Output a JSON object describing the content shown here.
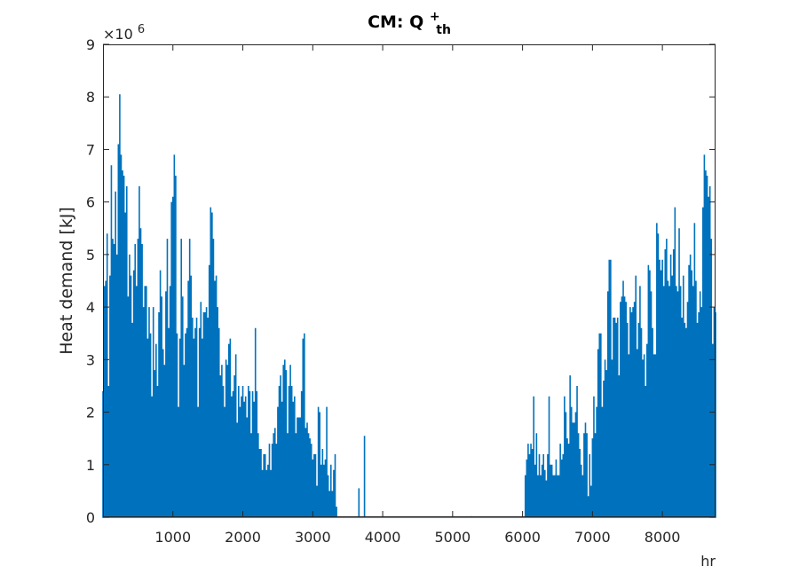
{
  "chart_data": {
    "type": "line",
    "title": {
      "main": "CM: Q",
      "sup": "+",
      "sub": "th"
    },
    "xlabel": "hr",
    "ylabel": "Heat demand [kJ]",
    "y_exponent_label": {
      "base": "×10",
      "exp": "6"
    },
    "xlim": [
      0,
      8760
    ],
    "ylim": [
      0,
      9
    ],
    "y_scale_factor": 1000000,
    "xticks": [
      1000,
      2000,
      3000,
      4000,
      5000,
      6000,
      7000,
      8000
    ],
    "xtick_labels": [
      "1000",
      "2000",
      "3000",
      "4000",
      "5000",
      "6000",
      "7000",
      "8000"
    ],
    "yticks": [
      0,
      1,
      2,
      3,
      4,
      5,
      6,
      7,
      8,
      9
    ],
    "ytick_labels": [
      "0",
      "1",
      "2",
      "3",
      "4",
      "5",
      "6",
      "7",
      "8",
      "9"
    ],
    "grid": false,
    "series": [
      {
        "color": "#0072BD",
        "x": [
          0,
          20,
          40,
          60,
          80,
          100,
          120,
          140,
          160,
          180,
          200,
          220,
          240,
          260,
          280,
          300,
          320,
          340,
          360,
          380,
          400,
          420,
          440,
          460,
          480,
          500,
          520,
          540,
          560,
          580,
          600,
          620,
          640,
          660,
          680,
          700,
          720,
          740,
          760,
          780,
          800,
          820,
          840,
          860,
          880,
          900,
          920,
          940,
          960,
          980,
          1000,
          1020,
          1040,
          1060,
          1080,
          1100,
          1120,
          1140,
          1160,
          1180,
          1200,
          1220,
          1240,
          1260,
          1280,
          1300,
          1320,
          1340,
          1360,
          1380,
          1400,
          1420,
          1440,
          1460,
          1480,
          1500,
          1520,
          1540,
          1560,
          1580,
          1600,
          1620,
          1640,
          1660,
          1680,
          1700,
          1720,
          1740,
          1760,
          1780,
          1800,
          1820,
          1840,
          1860,
          1880,
          1900,
          1920,
          1940,
          1960,
          1980,
          2000,
          2020,
          2040,
          2060,
          2080,
          2100,
          2120,
          2140,
          2160,
          2180,
          2200,
          2220,
          2240,
          2260,
          2280,
          2300,
          2320,
          2340,
          2360,
          2380,
          2400,
          2420,
          2440,
          2460,
          2480,
          2500,
          2520,
          2540,
          2560,
          2580,
          2600,
          2620,
          2640,
          2660,
          2680,
          2700,
          2720,
          2740,
          2760,
          2780,
          2800,
          2820,
          2840,
          2860,
          2880,
          2900,
          2920,
          2940,
          2960,
          2980,
          3000,
          3020,
          3040,
          3060,
          3080,
          3100,
          3120,
          3140,
          3160,
          3180,
          3200,
          3220,
          3240,
          3260,
          3280,
          3300,
          3320,
          3340,
          3360,
          3380,
          3400,
          3500,
          3600,
          3650,
          3660,
          3700,
          3730,
          3740,
          3800,
          4000,
          5000,
          5260,
          5270,
          6000,
          6020,
          6040,
          6060,
          6080,
          6100,
          6120,
          6140,
          6160,
          6180,
          6200,
          6220,
          6240,
          6260,
          6280,
          6300,
          6320,
          6340,
          6360,
          6380,
          6400,
          6420,
          6440,
          6460,
          6480,
          6500,
          6520,
          6540,
          6560,
          6580,
          6600,
          6620,
          6640,
          6660,
          6680,
          6700,
          6720,
          6740,
          6760,
          6780,
          6800,
          6820,
          6840,
          6860,
          6880,
          6900,
          6920,
          6940,
          6960,
          6980,
          7000,
          7020,
          7040,
          7060,
          7080,
          7100,
          7120,
          7140,
          7160,
          7180,
          7200,
          7220,
          7240,
          7260,
          7280,
          7300,
          7320,
          7340,
          7360,
          7380,
          7400,
          7420,
          7440,
          7460,
          7480,
          7500,
          7520,
          7540,
          7560,
          7580,
          7600,
          7620,
          7640,
          7660,
          7680,
          7700,
          7720,
          7740,
          7760,
          7780,
          7800,
          7820,
          7840,
          7860,
          7880,
          7900,
          7920,
          7940,
          7960,
          7980,
          8000,
          8020,
          8040,
          8060,
          8080,
          8100,
          8120,
          8140,
          8160,
          8180,
          8200,
          8220,
          8240,
          8260,
          8280,
          8300,
          8320,
          8340,
          8360,
          8380,
          8400,
          8420,
          8440,
          8460,
          8480,
          8500,
          8520,
          8540,
          8560,
          8580,
          8600,
          8620,
          8640,
          8660,
          8680,
          8700,
          8720,
          8740,
          8760
        ],
        "y": [
          2.4,
          4.4,
          4.5,
          5.4,
          2.5,
          4.6,
          6.7,
          5.3,
          5.2,
          6.2,
          5.0,
          7.1,
          8.05,
          6.9,
          6.6,
          6.5,
          5.8,
          6.3,
          4.2,
          5.0,
          4.6,
          3.7,
          4.7,
          5.2,
          4.4,
          5.3,
          6.3,
          5.5,
          5.2,
          4.0,
          4.4,
          4.4,
          3.4,
          4.0,
          3.5,
          2.3,
          4.0,
          2.8,
          3.3,
          2.5,
          3.9,
          4.7,
          4.2,
          3.2,
          2.9,
          4.3,
          5.3,
          3.6,
          4.4,
          6.0,
          6.1,
          6.9,
          6.5,
          3.5,
          2.1,
          3.4,
          5.3,
          4.2,
          2.9,
          3.5,
          3.6,
          4.5,
          5.3,
          4.6,
          3.8,
          3.4,
          3.6,
          3.8,
          2.1,
          3.6,
          4.1,
          3.4,
          3.9,
          3.9,
          4.0,
          3.8,
          4.8,
          5.9,
          5.8,
          5.3,
          4.5,
          4.6,
          4.0,
          3.6,
          2.7,
          2.9,
          2.5,
          2.1,
          3.0,
          2.9,
          3.3,
          3.4,
          2.3,
          2.4,
          2.7,
          3.1,
          1.8,
          2.5,
          2.1,
          2.3,
          2.5,
          2.2,
          2.3,
          1.9,
          2.5,
          2.4,
          1.6,
          2.4,
          2.2,
          3.6,
          2.4,
          1.6,
          1.3,
          1.3,
          0.9,
          1.2,
          1.2,
          0.9,
          1.0,
          1.4,
          0.9,
          1.4,
          1.6,
          1.7,
          1.4,
          2.1,
          2.5,
          2.7,
          2.2,
          2.9,
          3.0,
          2.8,
          1.6,
          2.5,
          2.9,
          2.5,
          2.2,
          2.3,
          1.6,
          1.9,
          1.9,
          1.9,
          2.4,
          3.4,
          3.5,
          1.7,
          1.8,
          1.6,
          1.5,
          1.4,
          1.1,
          1.2,
          1.2,
          0.6,
          2.1,
          2.0,
          1.0,
          1.3,
          1.0,
          1.1,
          2.1,
          0.8,
          0.5,
          1.0,
          0.5,
          0.9,
          1.2,
          0.2,
          0.0,
          0.0,
          0.0,
          0.0,
          0.0,
          0.0,
          0.55,
          0.0,
          0.0,
          1.55,
          0.0,
          0.0,
          0.0,
          0.0,
          0.02,
          0.0,
          0.0,
          0.8,
          1.1,
          1.4,
          1.2,
          1.4,
          1.3,
          2.3,
          1.0,
          1.6,
          0.8,
          1.2,
          0.8,
          1.0,
          1.2,
          0.9,
          0.7,
          1.2,
          2.3,
          1.0,
          1.0,
          0.8,
          0.8,
          1.1,
          0.8,
          0.8,
          1.4,
          1.1,
          1.2,
          2.3,
          2.0,
          1.5,
          1.4,
          2.7,
          2.1,
          1.8,
          1.8,
          2.0,
          2.5,
          1.6,
          1.3,
          1.0,
          0.8,
          1.6,
          1.8,
          1.6,
          0.4,
          1.2,
          0.6,
          1.5,
          2.3,
          1.6,
          2.1,
          3.2,
          3.5,
          3.5,
          2.1,
          2.6,
          3.0,
          2.8,
          4.3,
          4.9,
          4.9,
          3.0,
          3.8,
          3.8,
          3.7,
          3.8,
          2.7,
          4.1,
          4.2,
          4.5,
          4.2,
          4.1,
          3.7,
          3.1,
          4.0,
          3.9,
          4.0,
          4.1,
          4.6,
          3.2,
          3.7,
          4.4,
          3.6,
          3.0,
          3.1,
          2.5,
          3.3,
          4.8,
          4.7,
          4.3,
          3.6,
          3.1,
          3.1,
          5.6,
          5.4,
          4.9,
          4.7,
          4.9,
          4.4,
          5.1,
          5.3,
          4.5,
          4.4,
          5.0,
          4.6,
          5.1,
          5.9,
          4.4,
          4.3,
          5.5,
          4.4,
          3.8,
          4.6,
          3.7,
          3.6,
          4.1,
          4.8,
          5.0,
          4.7,
          4.4,
          5.6,
          4.5,
          3.7,
          3.9,
          4.3,
          4.0,
          5.9,
          6.9,
          6.6,
          6.5,
          6.1,
          6.3,
          5.3,
          3.3,
          4.0,
          3.9
        ]
      }
    ]
  }
}
